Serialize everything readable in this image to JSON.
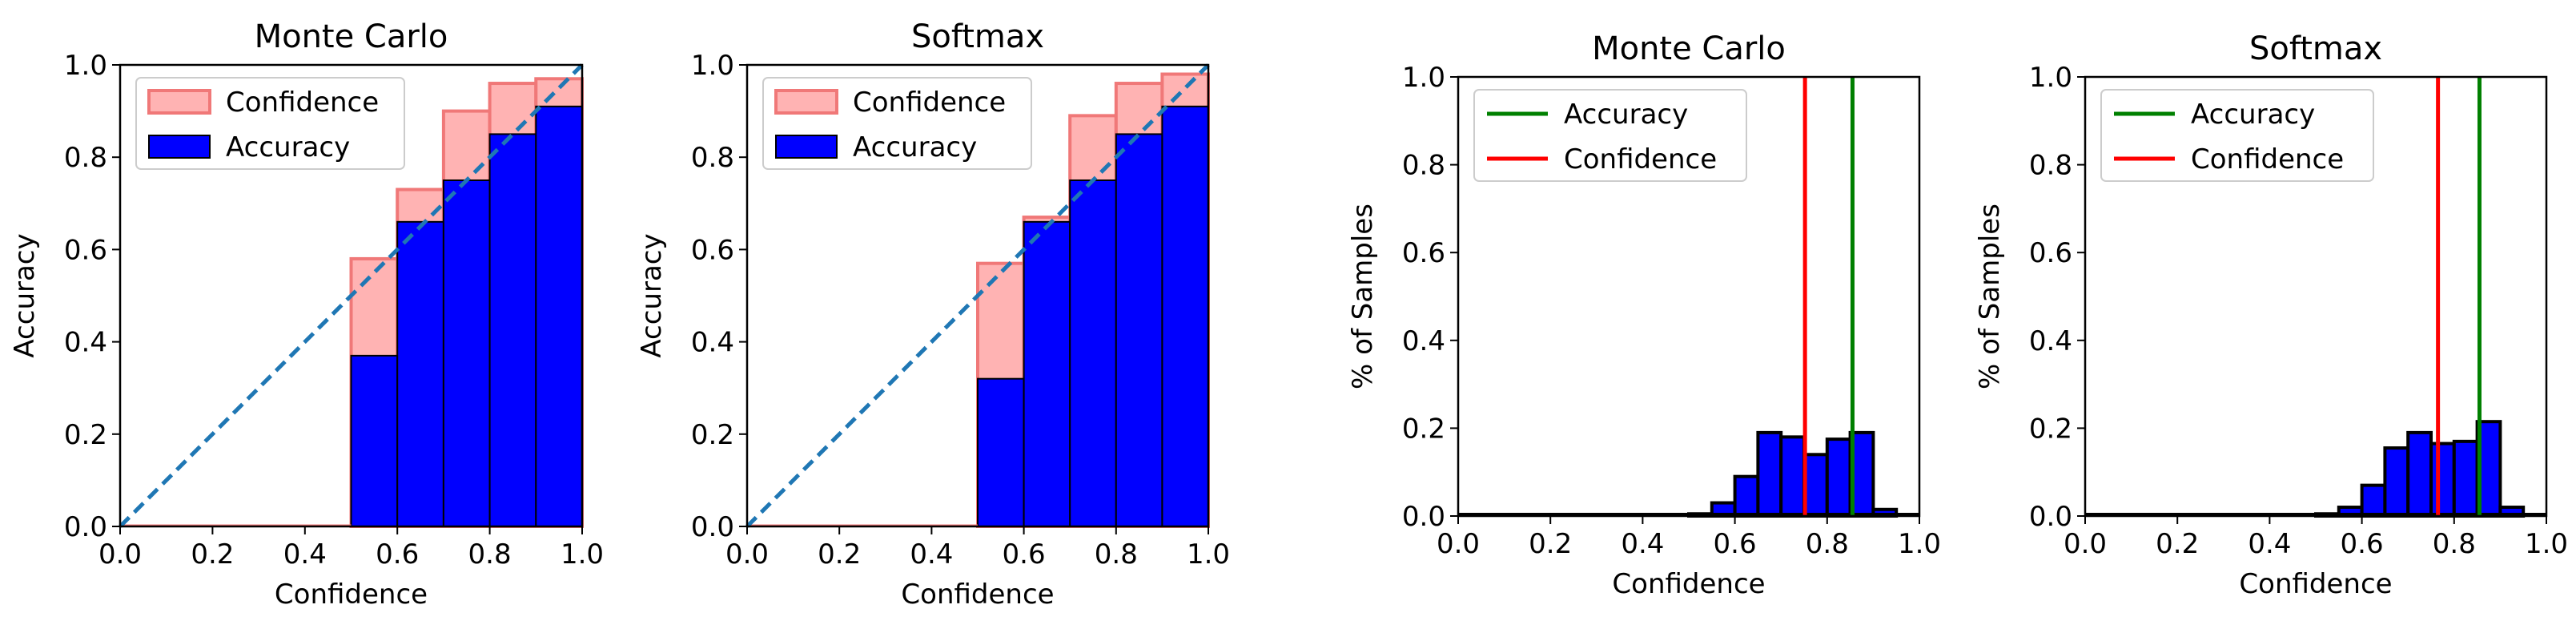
{
  "colors": {
    "confidence_fill": "#ffb3b3",
    "confidence_edge": "#f07878",
    "accuracy_fill": "#0000ff",
    "bar_edge": "#000000",
    "diagonal": "#1f77b4",
    "accuracy_line": "#008000",
    "confidence_line": "#ff0000"
  },
  "chart_data": [
    {
      "type": "bar",
      "kind": "reliability",
      "title": "Monte Carlo",
      "xlabel": "Confidence",
      "ylabel": "Accuracy",
      "xlim": [
        0,
        1
      ],
      "ylim": [
        0,
        1
      ],
      "xticks": [
        "0.0",
        "0.2",
        "0.4",
        "0.6",
        "0.8",
        "1.0"
      ],
      "yticks": [
        "0.0",
        "0.2",
        "0.4",
        "0.6",
        "0.8",
        "1.0"
      ],
      "bin_edges": [
        0.5,
        0.6,
        0.7,
        0.8,
        0.9,
        1.0
      ],
      "series": [
        {
          "name": "Confidence",
          "values": [
            0.58,
            0.73,
            0.9,
            0.96,
            0.97
          ]
        },
        {
          "name": "Accuracy",
          "values": [
            0.37,
            0.66,
            0.75,
            0.85,
            0.91
          ]
        }
      ],
      "legend": [
        "Confidence",
        "Accuracy"
      ],
      "legend_position": "upper-left",
      "diagonal": true
    },
    {
      "type": "bar",
      "kind": "reliability",
      "title": "Softmax",
      "xlabel": "Confidence",
      "ylabel": "Accuracy",
      "xlim": [
        0,
        1
      ],
      "ylim": [
        0,
        1
      ],
      "xticks": [
        "0.0",
        "0.2",
        "0.4",
        "0.6",
        "0.8",
        "1.0"
      ],
      "yticks": [
        "0.0",
        "0.2",
        "0.4",
        "0.6",
        "0.8",
        "1.0"
      ],
      "bin_edges": [
        0.5,
        0.6,
        0.7,
        0.8,
        0.9,
        1.0
      ],
      "series": [
        {
          "name": "Confidence",
          "values": [
            0.57,
            0.67,
            0.89,
            0.96,
            0.98
          ]
        },
        {
          "name": "Accuracy",
          "values": [
            0.32,
            0.66,
            0.75,
            0.85,
            0.91
          ]
        }
      ],
      "legend": [
        "Confidence",
        "Accuracy"
      ],
      "legend_position": "upper-left",
      "diagonal": true
    },
    {
      "type": "bar",
      "kind": "histogram",
      "title": "Monte Carlo",
      "xlabel": "Confidence",
      "ylabel": "% of Samples",
      "xlim": [
        0,
        1
      ],
      "ylim": [
        0,
        1
      ],
      "xticks": [
        "0.0",
        "0.2",
        "0.4",
        "0.6",
        "0.8",
        "1.0"
      ],
      "yticks": [
        "0.0",
        "0.2",
        "0.4",
        "0.6",
        "0.8",
        "1.0"
      ],
      "bin_width": 0.05,
      "bins": [
        {
          "x": 0.5,
          "value": 0.005
        },
        {
          "x": 0.55,
          "value": 0.03
        },
        {
          "x": 0.6,
          "value": 0.09
        },
        {
          "x": 0.65,
          "value": 0.19
        },
        {
          "x": 0.7,
          "value": 0.18
        },
        {
          "x": 0.75,
          "value": 0.14
        },
        {
          "x": 0.8,
          "value": 0.175
        },
        {
          "x": 0.85,
          "value": 0.19
        },
        {
          "x": 0.9,
          "value": 0.015
        }
      ],
      "lines": [
        {
          "name": "Accuracy",
          "x": 0.855
        },
        {
          "name": "Confidence",
          "x": 0.752
        }
      ],
      "legend": [
        "Accuracy",
        "Confidence"
      ],
      "legend_position": "upper-left"
    },
    {
      "type": "bar",
      "kind": "histogram",
      "title": "Softmax",
      "xlabel": "Confidence",
      "ylabel": "% of Samples",
      "xlim": [
        0,
        1
      ],
      "ylim": [
        0,
        1
      ],
      "xticks": [
        "0.0",
        "0.2",
        "0.4",
        "0.6",
        "0.8",
        "1.0"
      ],
      "yticks": [
        "0.0",
        "0.2",
        "0.4",
        "0.6",
        "0.8",
        "1.0"
      ],
      "bin_width": 0.05,
      "bins": [
        {
          "x": 0.5,
          "value": 0.005
        },
        {
          "x": 0.55,
          "value": 0.02
        },
        {
          "x": 0.6,
          "value": 0.07
        },
        {
          "x": 0.65,
          "value": 0.155
        },
        {
          "x": 0.7,
          "value": 0.19
        },
        {
          "x": 0.75,
          "value": 0.165
        },
        {
          "x": 0.8,
          "value": 0.17
        },
        {
          "x": 0.85,
          "value": 0.215
        },
        {
          "x": 0.9,
          "value": 0.02
        }
      ],
      "lines": [
        {
          "name": "Accuracy",
          "x": 0.855
        },
        {
          "name": "Confidence",
          "x": 0.765
        }
      ],
      "legend": [
        "Accuracy",
        "Confidence"
      ],
      "legend_position": "upper-left"
    }
  ]
}
